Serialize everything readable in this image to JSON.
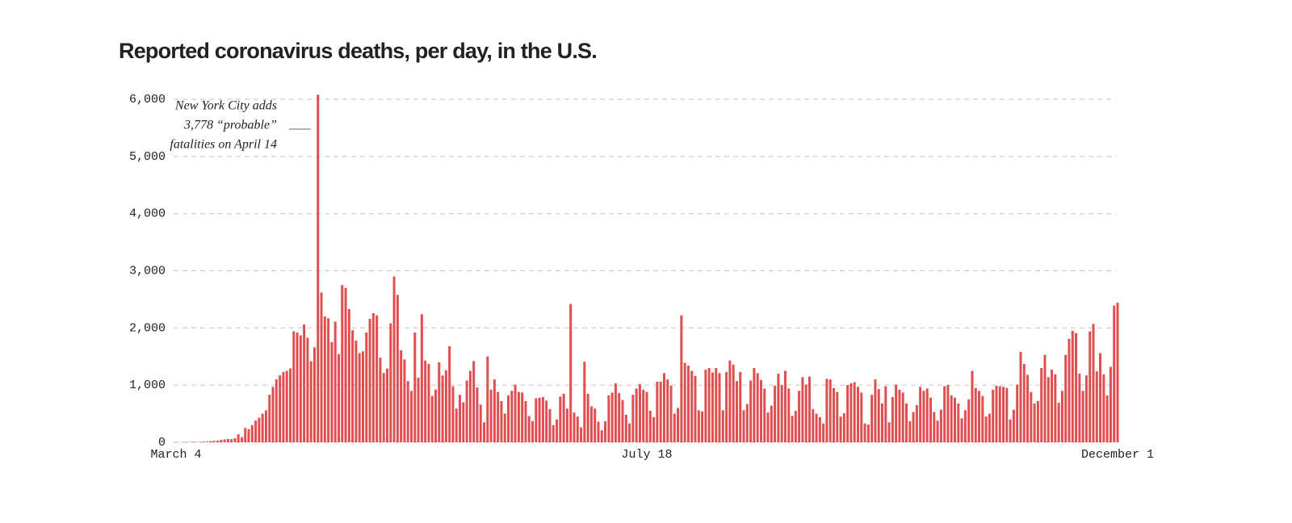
{
  "chart_data": {
    "type": "bar",
    "title": "Reported coronavirus deaths, per day, in the U.S.",
    "annotation": {
      "lines": [
        "New York City adds",
        "3,778 “probable”",
        "fatalities on April 14"
      ],
      "category": 41
    },
    "color": "#df4f4f",
    "grid": true,
    "ylim": [
      0,
      6000
    ],
    "yticks": [
      {
        "value": 0,
        "label": "0"
      },
      {
        "value": 1000,
        "label": "1,000"
      },
      {
        "value": 2000,
        "label": "2,000"
      },
      {
        "value": 3000,
        "label": "3,000"
      },
      {
        "value": 4000,
        "label": "4,000"
      },
      {
        "value": 5000,
        "label": "5,000"
      },
      {
        "value": 6000,
        "label": "6,000"
      }
    ],
    "categories": [
      "March 4",
      null,
      null,
      null,
      null,
      null,
      null,
      null,
      null,
      null,
      null,
      null,
      null,
      null,
      null,
      null,
      null,
      null,
      null,
      null,
      null,
      null,
      null,
      null,
      null,
      null,
      null,
      null,
      null,
      null,
      null,
      null,
      null,
      null,
      null,
      null,
      null,
      null,
      null,
      null,
      null,
      null,
      null,
      null,
      null,
      null,
      null,
      null,
      null,
      null,
      null,
      null,
      null,
      null,
      null,
      null,
      null,
      null,
      null,
      null,
      null,
      null,
      null,
      null,
      null,
      null,
      null,
      null,
      null,
      null,
      null,
      null,
      null,
      null,
      null,
      null,
      null,
      null,
      null,
      null,
      null,
      null,
      null,
      null,
      null,
      null,
      null,
      null,
      null,
      null,
      null,
      null,
      null,
      null,
      null,
      null,
      null,
      null,
      null,
      null,
      null,
      null,
      null,
      null,
      null,
      null,
      null,
      null,
      null,
      null,
      null,
      null,
      null,
      null,
      null,
      null,
      null,
      null,
      null,
      null,
      null,
      null,
      null,
      null,
      null,
      null,
      null,
      null,
      null,
      null,
      null,
      null,
      null,
      null,
      null,
      null,
      "July 18",
      null,
      null,
      null,
      null,
      null,
      null,
      null,
      null,
      null,
      null,
      null,
      null,
      null,
      null,
      null,
      null,
      null,
      null,
      null,
      null,
      null,
      null,
      null,
      null,
      null,
      null,
      null,
      null,
      null,
      null,
      null,
      null,
      null,
      null,
      null,
      null,
      null,
      null,
      null,
      null,
      null,
      null,
      null,
      null,
      null,
      null,
      null,
      null,
      null,
      null,
      null,
      null,
      null,
      null,
      null,
      null,
      null,
      null,
      null,
      null,
      null,
      null,
      null,
      null,
      null,
      null,
      null,
      null,
      null,
      null,
      null,
      null,
      null,
      null,
      null,
      null,
      null,
      null,
      null,
      null,
      null,
      null,
      null,
      null,
      null,
      null,
      null,
      null,
      null,
      null,
      null,
      null,
      null,
      null,
      null,
      null,
      null,
      null,
      null,
      null,
      null,
      null,
      null,
      null,
      null,
      null,
      null,
      null,
      null,
      null,
      null,
      null,
      null,
      null,
      null,
      null,
      null,
      null,
      null,
      null,
      null,
      null,
      null,
      null,
      null,
      null,
      null,
      null,
      null,
      null,
      null,
      null,
      null,
      null,
      null,
      "December 1"
    ],
    "values": [
      2,
      3,
      5,
      5,
      4,
      8,
      5,
      9,
      10,
      15,
      20,
      25,
      30,
      40,
      50,
      60,
      55,
      70,
      140,
      90,
      250,
      230,
      300,
      380,
      430,
      500,
      560,
      830,
      970,
      1100,
      1170,
      1230,
      1250,
      1290,
      1940,
      1920,
      1870,
      2060,
      1830,
      1420,
      1660,
      6080,
      2620,
      2200,
      2170,
      1750,
      2110,
      1540,
      2750,
      2700,
      2330,
      1960,
      1780,
      1560,
      1590,
      1920,
      2160,
      2260,
      2220,
      1480,
      1210,
      1290,
      2080,
      2900,
      2580,
      1610,
      1450,
      1070,
      900,
      1920,
      1130,
      2240,
      1430,
      1370,
      810,
      920,
      1400,
      1170,
      1260,
      1680,
      980,
      590,
      830,
      700,
      1080,
      1250,
      1420,
      960,
      660,
      350,
      1500,
      920,
      1100,
      880,
      720,
      500,
      820,
      900,
      1010,
      880,
      870,
      720,
      460,
      370,
      770,
      780,
      790,
      730,
      580,
      300,
      400,
      800,
      850,
      590,
      2420,
      520,
      450,
      260,
      1410,
      850,
      630,
      590,
      360,
      210,
      370,
      820,
      870,
      1030,
      860,
      740,
      480,
      330,
      830,
      940,
      1020,
      920,
      880,
      550,
      440,
      1060,
      1060,
      1210,
      1100,
      990,
      500,
      600,
      2220,
      1390,
      1340,
      1250,
      1160,
      560,
      540,
      1270,
      1300,
      1220,
      1300,
      1210,
      560,
      1230,
      1430,
      1360,
      1070,
      1230,
      560,
      670,
      1080,
      1300,
      1210,
      1090,
      940,
      520,
      640,
      990,
      1200,
      1000,
      1250,
      940,
      460,
      550,
      900,
      1140,
      1010,
      1150,
      580,
      500,
      440,
      330,
      1110,
      1100,
      950,
      880,
      450,
      510,
      1000,
      1030,
      1050,
      970,
      870,
      330,
      310,
      830,
      1100,
      930,
      680,
      980,
      350,
      790,
      1010,
      920,
      870,
      680,
      370,
      530,
      650,
      970,
      900,
      940,
      780,
      530,
      380,
      570,
      980,
      1000,
      820,
      780,
      680,
      420,
      560,
      750,
      1250,
      950,
      900,
      810,
      450,
      500,
      920,
      990,
      980,
      970,
      950,
      400,
      570,
      1010,
      1580,
      1370,
      1180,
      880,
      680,
      720,
      1300,
      1530,
      1140,
      1270,
      1190,
      690,
      900,
      1530,
      1810,
      1950,
      1910,
      1200,
      900,
      1170,
      1940,
      2070,
      1240,
      1560,
      1190,
      820,
      1320,
      2390,
      2440
    ]
  }
}
